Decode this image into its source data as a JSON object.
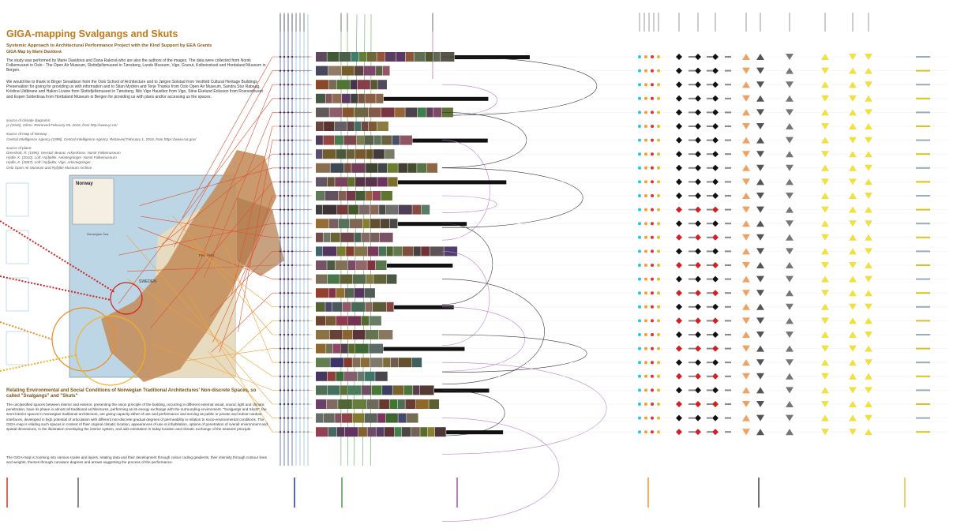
{
  "header": {
    "title": "GIGA-mapping Svalgangs and Skuts",
    "subtitle": "Systemic Approach to Architectural Performance Project with the Kind Support by EEA Grants",
    "author": "GIGA-Map by Marie Davidová"
  },
  "intro": {
    "paragraphs": [
      "The study was performed by Marie Davidová and Dana Raková who are also the authors of the images. The data were collected from Norsk Folkemuseet in Oslo - The Open Air Museum, Slottsfjellsmuseet in Tønsberg, Lands Museum, Vigo, Grunut, Kolbeinstveit and Hordaland Museum in Bergen.",
      "We would like to thank to Birger Sevaldson from the Oslo School of Architecture and to Jørgen Solstad from Vestfold Cultural Heritage Buildings Preservation for giving for providing us with information and to Stian Mydren and Terje Thanks from Oslo Open Air Museum, Sandra Stur Rabaug, Kristina Uldbirane and Hakon Livane from Slottsfjellsmuseet in Tønsberg, Nils Vigo Haustkor from Vigo, Stine Ekelund Eriksson from Rosnesthuset and Espen Sotterbraa from Hordaland Museum in Bergen for providing us with plans and/or accessing us the spaces."
    ]
  },
  "sources": [
    {
      "heading": "source of climate diagrams:",
      "lines": [
        "yr (2016). Climo. Retrieved February 05, 2016, from http://www.yr.no/"
      ]
    },
    {
      "heading": "source of map of Norway:",
      "lines": [
        "Central Intelligence Agency (1998). Central Intelligence Agency. Retrieved February 1, 2016, from https://www.cia.gov/"
      ]
    },
    {
      "heading": "source of plans:",
      "lines": [
        "Drevsholt, R. (1995). Vevstol, Bearat. Arkivskisse. Norsk Folkemuseum",
        "Hydle, K. (2010). Loft i Nyfjeller. Arkivtegninger. Norsk Folkemuseum",
        "Hydle, K. (2007). Loft i Nyfjeller, Vigo. Arkivtegninger",
        "Oslo Open Air Museum and Ryfylke Museum Archive"
      ]
    }
  ],
  "map": {
    "labels": [
      "Norway",
      "Norwegian Sea",
      "SWEDEN",
      "FINLAND"
    ]
  },
  "section": {
    "heading": "Relating Environmental and Social Conditions of Norwegian Traditional Architectures' Non-discrete Spaces, so called \"Svalgangs\" and \"Skuts\"",
    "paragraphs": [
      "The unclassified spaces between interior and exterior, presenting the onion principle of the building, occurring in different external visual, sound, light and climatic penetration, have its phase in almost all traditional architectures, performing as its energy exchange with the surrounding environment. \"Svalgangs and Skuts\", the semi-interior spaces in Norwegian traditional architecture, are giving capacity either of use and performance and serving as public or private and indoor-outdoor interfaces, developed in high potential of articulation with different non-discrete gradual degrees of permeability in relation to socio-environmental conditions. The GIGA-map is relating such spaces in context of their original climatic location, appearances of use or inhabitation, options of penetration of overall environment and spatial dimensions, in the illustration enveloping the interior system, and aids orientation in today location and climatic exchange of the seasons principle.",
      "The GIGA-map is zooming into various scales and layers, relating data and their development through colour coding gradients, their intensity through contour lines and weights, themes through curvature degrees and arrows suggesting the process of the performance."
    ]
  }
}
